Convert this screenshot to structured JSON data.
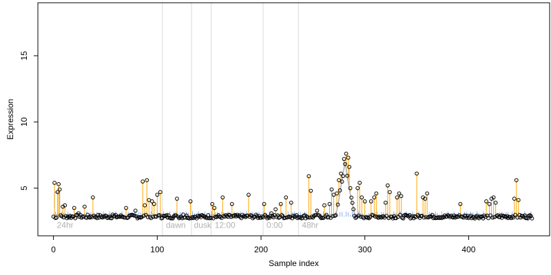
{
  "chart_data": {
    "type": "scatter",
    "xlabel": "Sample index",
    "ylabel": "Expression",
    "xlim": [
      -15,
      478
    ],
    "ylim": [
      1.4,
      19.0
    ],
    "xticks": [
      0,
      100,
      200,
      300,
      400
    ],
    "yticks": [
      5,
      10,
      15
    ],
    "grid": false,
    "region_boundaries": [
      105,
      133,
      152,
      202,
      236
    ],
    "region_labels": [
      {
        "text": "24hr",
        "x": 2
      },
      {
        "text": "dawn",
        "x": 107
      },
      {
        "text": "dusk",
        "x": 134
      },
      {
        "text": "12:00",
        "x": 154
      },
      {
        "text": "0:00",
        "x": 204
      },
      {
        "text": "48hr",
        "x": 238
      }
    ],
    "colors": {
      "points": "#000000",
      "upper_segments": "#FFA500",
      "fit_band": "#6495ED",
      "fit_line": "#B0B0B0",
      "region_lines": "#D9D9D9",
      "region_text": "#B0B0B0"
    },
    "peaks": [
      [
        1,
        5.4
      ],
      [
        4,
        4.7
      ],
      [
        5,
        5.3
      ],
      [
        6,
        4.9
      ],
      [
        9,
        3.6
      ],
      [
        11,
        3.7
      ],
      [
        20,
        3.5
      ],
      [
        24,
        3.1
      ],
      [
        30,
        3.6
      ],
      [
        38,
        4.3
      ],
      [
        57,
        3.0
      ],
      [
        70,
        3.5
      ],
      [
        79,
        3.3
      ],
      [
        86,
        5.5
      ],
      [
        88,
        3.7
      ],
      [
        90,
        5.6
      ],
      [
        92,
        4.1
      ],
      [
        95,
        4.0
      ],
      [
        97,
        3.8
      ],
      [
        100,
        4.5
      ],
      [
        103,
        4.7
      ],
      [
        119,
        4.2
      ],
      [
        125,
        3.0
      ],
      [
        132,
        4.0
      ],
      [
        153,
        3.8
      ],
      [
        155,
        3.5
      ],
      [
        163,
        4.3
      ],
      [
        172,
        3.8
      ],
      [
        188,
        4.5
      ],
      [
        203,
        3.8
      ],
      [
        210,
        3.1
      ],
      [
        214,
        3.4
      ],
      [
        219,
        3.8
      ],
      [
        224,
        4.3
      ],
      [
        229,
        3.9
      ],
      [
        246,
        5.9
      ],
      [
        248,
        4.8
      ],
      [
        254,
        3.3
      ],
      [
        261,
        3.7
      ],
      [
        266,
        3.8
      ],
      [
        268,
        4.9
      ],
      [
        270,
        4.5
      ],
      [
        273,
        4.6
      ],
      [
        275,
        5.6
      ],
      [
        277,
        6.1
      ],
      [
        280,
        7.2
      ],
      [
        282,
        7.6
      ],
      [
        284,
        7.3
      ],
      [
        285,
        6.6
      ],
      [
        286,
        5.0
      ],
      [
        293,
        5.0
      ],
      [
        295,
        5.4
      ],
      [
        297,
        4.3
      ],
      [
        300,
        4.0
      ],
      [
        306,
        4.0
      ],
      [
        309,
        4.3
      ],
      [
        311,
        4.6
      ],
      [
        320,
        3.9
      ],
      [
        322,
        5.2
      ],
      [
        324,
        4.7
      ],
      [
        331,
        4.3
      ],
      [
        333,
        4.6
      ],
      [
        335,
        4.4
      ],
      [
        350,
        6.1
      ],
      [
        356,
        4.3
      ],
      [
        358,
        4.2
      ],
      [
        360,
        4.6
      ],
      [
        392,
        3.8
      ],
      [
        417,
        4.0
      ],
      [
        420,
        3.8
      ],
      [
        422,
        4.2
      ],
      [
        424,
        4.3
      ],
      [
        426,
        3.9
      ],
      [
        444,
        4.2
      ],
      [
        446,
        5.6
      ],
      [
        448,
        4.1
      ]
    ]
  }
}
